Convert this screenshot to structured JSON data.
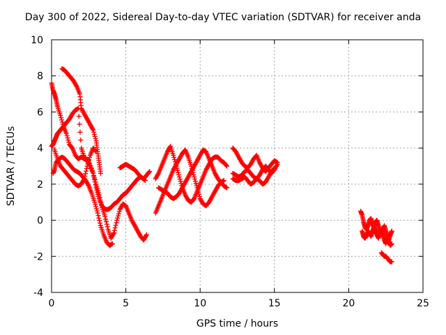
{
  "chart_data": {
    "type": "scatter",
    "title": "Day 300 of 2022, Sidereal Day-to-day VTEC variation (SDTVAR) for receiver anda",
    "xlabel": "GPS time / hours",
    "ylabel": "SDTVAR / TECUs",
    "xlim": [
      0,
      25
    ],
    "ylim": [
      -4,
      10
    ],
    "xticks": [
      "0",
      "5",
      "10",
      "15",
      "20",
      "25"
    ],
    "yticks": [
      "-4",
      "-2",
      "0",
      "2",
      "4",
      "6",
      "8",
      "10"
    ],
    "grid": true,
    "marker": "+",
    "color": "#ff0000",
    "series": [
      {
        "x": [
          0.0,
          0.1,
          0.2,
          0.3,
          0.4,
          0.5,
          0.6,
          0.7,
          0.8,
          1.0,
          1.2,
          1.4,
          1.6,
          1.8,
          2.0,
          2.2,
          2.5,
          2.8,
          3.0,
          3.2,
          3.4,
          3.6,
          3.8,
          4.0,
          4.2,
          4.4,
          4.6,
          4.8,
          5.0,
          5.2,
          5.4,
          5.6,
          5.8,
          6.0,
          6.3
        ],
        "y": [
          4.1,
          4.2,
          4.4,
          4.6,
          4.8,
          4.9,
          5.0,
          5.1,
          5.2,
          5.4,
          5.6,
          5.9,
          6.1,
          6.2,
          4.0,
          3.5,
          3.3,
          2.6,
          1.8,
          1.2,
          0.8,
          0.6,
          0.6,
          0.7,
          0.9,
          1.0,
          1.2,
          1.4,
          1.5,
          1.7,
          1.9,
          2.1,
          2.3,
          2.4,
          2.2
        ]
      },
      {
        "x": [
          0.0,
          0.1,
          0.2,
          0.3,
          0.4,
          0.6,
          0.8,
          1.0,
          1.2,
          1.4,
          1.6,
          1.8,
          2.0,
          2.2,
          2.4,
          2.6,
          2.8,
          3.0,
          3.2,
          3.4,
          3.6,
          3.8,
          4.0,
          4.2,
          4.4,
          4.6,
          4.8,
          5.0,
          5.2,
          5.4,
          5.6,
          5.8,
          6.0,
          6.2,
          6.4
        ],
        "y": [
          7.6,
          7.2,
          7.0,
          6.7,
          6.3,
          5.8,
          5.2,
          4.8,
          4.2,
          4.0,
          3.6,
          3.4,
          3.5,
          3.4,
          3.3,
          3.0,
          2.6,
          2.0,
          1.4,
          0.7,
          0.2,
          -0.5,
          -1.0,
          -0.7,
          0.0,
          0.6,
          0.9,
          0.8,
          0.4,
          0.0,
          -0.3,
          -0.6,
          -0.9,
          -1.1,
          -0.8
        ]
      },
      {
        "x": [
          0.1,
          0.2,
          0.3,
          0.5,
          0.7,
          0.9,
          1.1,
          1.3,
          1.5,
          1.7,
          1.9,
          2.1,
          2.3,
          2.5,
          2.7,
          2.9,
          3.1,
          3.3,
          3.5,
          3.7,
          3.9,
          4.1
        ],
        "y": [
          2.6,
          2.8,
          3.2,
          3.4,
          3.5,
          3.4,
          3.2,
          3.0,
          2.8,
          2.7,
          2.6,
          2.4,
          2.2,
          1.9,
          1.5,
          1.0,
          0.4,
          -0.3,
          -0.8,
          -1.2,
          -1.4,
          -1.3
        ]
      },
      {
        "x": [
          0.7,
          0.9,
          1.1,
          1.3,
          1.5,
          1.7,
          1.9,
          2.0,
          2.2,
          2.4,
          2.6,
          2.8,
          3.0,
          3.1,
          3.2,
          3.3
        ],
        "y": [
          8.4,
          8.3,
          8.1,
          7.9,
          7.7,
          7.4,
          7.0,
          6.2,
          5.9,
          5.6,
          5.3,
          5.0,
          4.4,
          3.8,
          3.2,
          2.6
        ]
      },
      {
        "x": [
          0.2,
          0.4,
          0.6,
          0.8,
          1.0,
          1.2,
          1.4,
          1.6,
          1.8,
          2.0,
          2.2,
          2.4,
          2.6,
          2.8,
          3.0
        ],
        "y": [
          3.9,
          3.4,
          3.0,
          2.8,
          2.6,
          2.4,
          2.2,
          2.0,
          1.9,
          2.0,
          2.3,
          3.0,
          3.6,
          4.0,
          3.8
        ]
      },
      {
        "x": [
          4.6,
          4.8,
          5.0,
          5.2,
          5.4,
          5.6,
          5.8,
          6.0,
          6.2,
          6.4,
          6.6
        ],
        "y": [
          2.9,
          3.0,
          3.1,
          3.0,
          2.9,
          2.8,
          2.6,
          2.4,
          2.3,
          2.5,
          2.7
        ]
      },
      {
        "x": [
          7.0,
          7.2,
          7.4,
          7.6,
          7.8,
          8.0,
          8.2,
          8.4,
          8.6,
          8.8,
          9.0,
          9.2,
          9.4,
          9.6,
          9.8,
          10.0,
          10.2,
          10.4,
          10.6,
          10.8,
          11.0,
          11.2,
          11.4,
          11.6,
          11.8
        ],
        "y": [
          2.3,
          2.6,
          3.0,
          3.4,
          3.8,
          4.1,
          3.6,
          3.0,
          2.4,
          1.8,
          1.4,
          1.1,
          1.0,
          1.2,
          1.6,
          2.0,
          2.4,
          2.8,
          3.1,
          3.4,
          3.5,
          3.5,
          3.3,
          3.2,
          3.0
        ]
      },
      {
        "x": [
          7.0,
          7.2,
          7.4,
          7.6,
          7.8,
          8.0,
          8.2,
          8.4,
          8.6,
          8.8,
          9.0,
          9.2,
          9.4,
          9.6,
          9.8,
          10.0,
          10.2,
          10.4,
          10.6,
          10.8,
          11.0,
          11.2,
          11.4,
          11.6
        ],
        "y": [
          0.4,
          0.8,
          1.2,
          1.6,
          2.0,
          2.4,
          2.8,
          3.1,
          3.4,
          3.7,
          3.9,
          3.5,
          3.0,
          2.4,
          1.8,
          1.2,
          0.9,
          0.8,
          1.0,
          1.3,
          1.6,
          1.9,
          2.1,
          2.2
        ]
      },
      {
        "x": [
          7.2,
          7.4,
          7.6,
          7.8,
          8.0,
          8.2,
          8.4,
          8.6,
          8.8,
          9.0,
          9.2,
          9.4,
          9.6,
          9.8,
          10.0,
          10.2,
          10.4,
          10.6,
          10.8,
          11.0,
          11.2,
          11.4,
          11.6,
          11.8
        ],
        "y": [
          1.8,
          1.7,
          1.6,
          1.5,
          1.3,
          1.2,
          1.3,
          1.5,
          1.8,
          2.1,
          2.4,
          2.7,
          3.0,
          3.3,
          3.6,
          3.9,
          3.8,
          3.4,
          3.0,
          2.6,
          2.3,
          2.1,
          1.9,
          1.8
        ]
      },
      {
        "x": [
          12.2,
          12.4,
          12.6,
          12.8,
          13.0,
          13.2,
          13.4,
          13.6,
          13.8,
          14.0,
          14.2,
          14.4,
          14.6,
          14.8,
          15.0,
          15.2
        ],
        "y": [
          4.0,
          3.8,
          3.5,
          3.2,
          3.0,
          2.9,
          3.1,
          3.4,
          3.6,
          3.2,
          2.9,
          2.7,
          2.9,
          3.1,
          3.3,
          3.2
        ]
      },
      {
        "x": [
          12.2,
          12.4,
          12.6,
          12.8,
          13.0,
          13.2,
          13.4,
          13.6,
          13.8,
          14.0,
          14.2,
          14.4,
          14.6,
          14.8,
          15.0,
          15.2
        ],
        "y": [
          2.6,
          2.5,
          2.4,
          2.5,
          2.7,
          2.8,
          2.6,
          2.4,
          2.3,
          2.5,
          2.8,
          3.0,
          2.8,
          2.6,
          2.8,
          3.1
        ]
      },
      {
        "x": [
          12.2,
          12.4,
          12.6,
          12.8,
          13.0,
          13.2,
          13.4,
          13.6,
          13.8,
          14.0,
          14.2,
          14.4,
          14.6,
          14.8,
          15.0
        ],
        "y": [
          2.3,
          2.2,
          2.2,
          2.3,
          2.4,
          2.2,
          2.0,
          2.1,
          2.3,
          2.2,
          2.0,
          2.1,
          2.4,
          2.7,
          2.9
        ]
      },
      {
        "x": [
          20.8,
          20.9,
          21.0,
          21.1,
          21.2,
          21.3,
          21.4,
          21.5,
          21.6,
          21.7,
          21.8,
          21.9,
          22.0,
          22.1,
          22.2,
          22.3,
          22.4,
          22.5,
          22.6,
          22.7,
          22.8,
          22.9
        ],
        "y": [
          0.5,
          0.3,
          -0.1,
          -0.4,
          -0.5,
          -0.3,
          0.0,
          0.1,
          -0.2,
          -0.4,
          -0.1,
          0.0,
          -0.3,
          -0.6,
          -0.8,
          -0.5,
          -0.3,
          -0.6,
          -0.9,
          -1.1,
          -0.8,
          -0.6
        ]
      },
      {
        "x": [
          20.9,
          21.0,
          21.1,
          21.2,
          21.3,
          21.4,
          21.5,
          21.6,
          21.7,
          21.8,
          21.9,
          22.0,
          22.1,
          22.2,
          22.3,
          22.4,
          22.5,
          22.6,
          22.7,
          22.8,
          22.9
        ],
        "y": [
          -0.6,
          -0.9,
          -1.0,
          -0.8,
          -0.6,
          -0.7,
          -0.9,
          -0.6,
          -0.4,
          -0.6,
          -0.8,
          -1.0,
          -0.7,
          -0.5,
          -0.8,
          -1.1,
          -1.3,
          -1.0,
          -1.2,
          -1.4,
          -1.3
        ]
      },
      {
        "x": [
          22.2,
          22.3,
          22.4,
          22.5,
          22.6,
          22.7,
          22.8,
          22.9
        ],
        "y": [
          -1.8,
          -1.9,
          -2.0,
          -2.0,
          -2.1,
          -2.2,
          -2.3,
          -2.3
        ]
      }
    ]
  }
}
